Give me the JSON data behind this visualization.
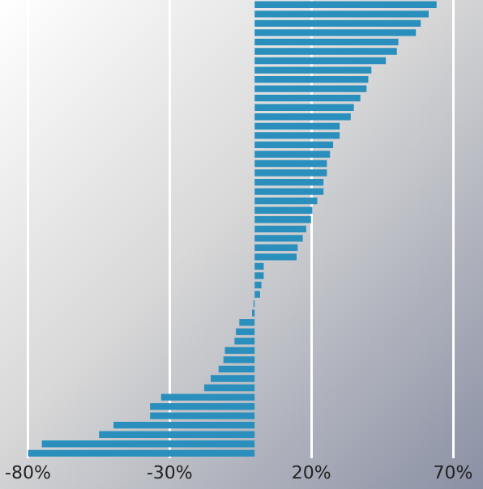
{
  "chart_data": {
    "type": "bar",
    "orientation": "horizontal",
    "categories": [
      null,
      null,
      null,
      null,
      null,
      null,
      null,
      null,
      null,
      null,
      null,
      null,
      null,
      null,
      null,
      null,
      null,
      null,
      null,
      null,
      null,
      null,
      null,
      null,
      null,
      null,
      null,
      null,
      null,
      null,
      null,
      null,
      null,
      null,
      null,
      null,
      null,
      null,
      null,
      null,
      null,
      null,
      null,
      null,
      null,
      null,
      null,
      null,
      null
    ],
    "values": [
      64.2,
      61.4,
      58.6,
      56.9,
      50.7,
      50.2,
      46.3,
      41.2,
      40.1,
      39.5,
      37.3,
      35.0,
      33.9,
      30.0,
      30.0,
      27.7,
      26.6,
      25.5,
      25.5,
      24.3,
      24.3,
      22.1,
      20.4,
      19.9,
      18.2,
      17.0,
      15.2,
      14.8,
      3.2,
      3.2,
      2.4,
      1.9,
      -0.4,
      -0.9,
      -5.4,
      -6.6,
      -7.1,
      -10.5,
      -11.0,
      -12.7,
      -15.5,
      -17.8,
      -33.0,
      -36.9,
      -36.9,
      -49.8,
      -54.9,
      -75.1,
      -80
    ],
    "color": "#2a8fbd",
    "xlim": [
      -80,
      80
    ],
    "xticks": [
      {
        "value": -80,
        "label": "-80%"
      },
      {
        "value": -30,
        "label": "-30%"
      },
      {
        "value": 20,
        "label": "20%"
      },
      {
        "value": 70,
        "label": "70%"
      }
    ],
    "grid": "x"
  }
}
